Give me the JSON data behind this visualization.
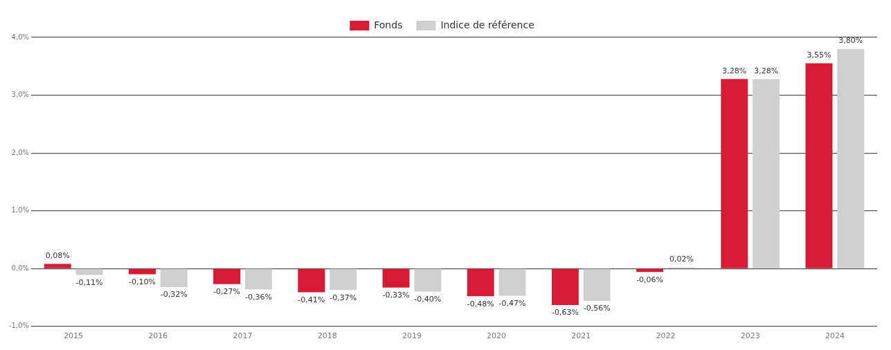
{
  "chart_data": {
    "type": "bar",
    "categories": [
      "2015",
      "2016",
      "2017",
      "2018",
      "2019",
      "2020",
      "2021",
      "2022",
      "2023",
      "2024"
    ],
    "series": [
      {
        "name": "Fonds",
        "color": "#d71a35",
        "values": [
          0.08,
          -0.1,
          -0.27,
          -0.41,
          -0.33,
          -0.48,
          -0.63,
          -0.06,
          3.28,
          3.55
        ],
        "value_labels": [
          "0,08%",
          "-0,10%",
          "-0,27%",
          "-0,41%",
          "-0,33%",
          "-0,48%",
          "-0,63%",
          "-0,06%",
          "3,28%",
          "3,55%"
        ]
      },
      {
        "name": "Indice de référence",
        "color": "#d0d0d0",
        "values": [
          -0.11,
          -0.32,
          -0.36,
          -0.37,
          -0.4,
          -0.47,
          -0.56,
          0.02,
          3.28,
          3.8
        ],
        "value_labels": [
          "-0,11%",
          "-0,32%",
          "-0,36%",
          "-0,37%",
          "-0,40%",
          "-0,47%",
          "-0,56%",
          "0,02%",
          "3,28%",
          "3,80%"
        ]
      }
    ],
    "ylim": [
      -1,
      4
    ],
    "yticks": [
      {
        "value": -1,
        "label": "-1,0%"
      },
      {
        "value": 0,
        "label": "0,0%"
      },
      {
        "value": 1,
        "label": "1,0%"
      },
      {
        "value": 2,
        "label": "2,0%"
      },
      {
        "value": 3,
        "label": "3,0%"
      },
      {
        "value": 4,
        "label": "4,0%"
      }
    ],
    "grid": "y",
    "legend": "top"
  }
}
